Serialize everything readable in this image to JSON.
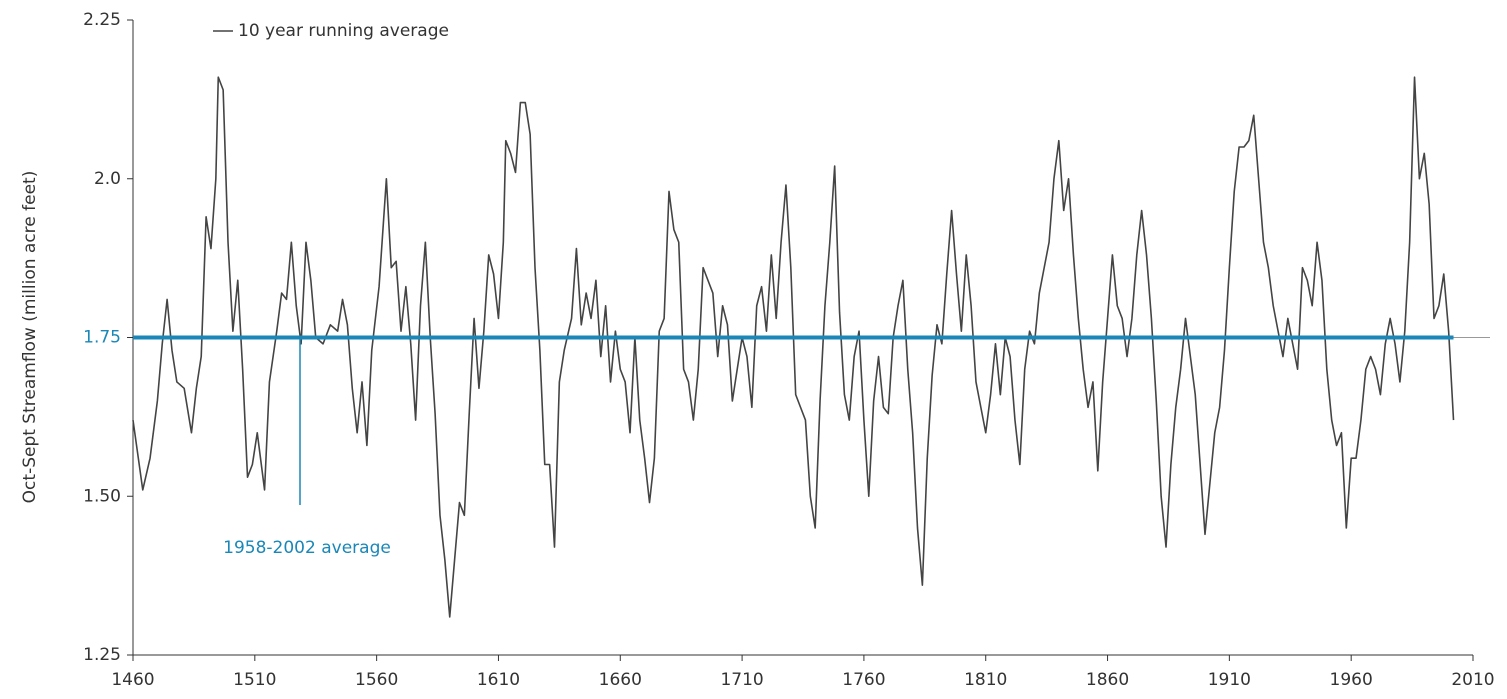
{
  "chart_data": {
    "type": "line",
    "y_label": "Oct-Sept Streamflow (million acre feet)",
    "xlim": [
      1460,
      2010
    ],
    "xticks": [
      1460,
      1510,
      1560,
      1610,
      1660,
      1710,
      1760,
      1810,
      1860,
      1910,
      1960,
      2010
    ],
    "ylim": [
      1.25,
      2.25
    ],
    "yticks": [
      1.25,
      {
        "value": 1.5,
        "label": "1.50"
      },
      1.75,
      {
        "value": 2,
        "label": "2.0"
      },
      2.25
    ],
    "reference_line": {
      "value": 1.75,
      "label": "1958-2002 average",
      "color": "#1a87b8"
    },
    "series": [
      {
        "name": "10 year running average",
        "color": "#444444",
        "x": [
          1460,
          1464,
          1467,
          1470,
          1472,
          1474,
          1476,
          1478,
          1481,
          1484,
          1486,
          1488,
          1490,
          1492,
          1494,
          1495,
          1497,
          1499,
          1501,
          1503,
          1505,
          1507,
          1509,
          1511,
          1514,
          1516,
          1519,
          1521,
          1523,
          1525,
          1527,
          1529,
          1531,
          1533,
          1535,
          1538,
          1541,
          1544,
          1546,
          1548,
          1550,
          1552,
          1554,
          1556,
          1558,
          1561,
          1564,
          1566,
          1568,
          1570,
          1572,
          1574,
          1576,
          1578,
          1580,
          1582,
          1584,
          1586,
          1588,
          1590,
          1592,
          1594,
          1596,
          1598,
          1600,
          1602,
          1604,
          1606,
          1608,
          1610,
          1612,
          1613,
          1615,
          1617,
          1619,
          1621,
          1623,
          1625,
          1627,
          1629,
          1631,
          1633,
          1635,
          1637,
          1640,
          1642,
          1644,
          1646,
          1648,
          1650,
          1652,
          1654,
          1656,
          1658,
          1660,
          1662,
          1664,
          1666,
          1668,
          1670,
          1672,
          1674,
          1676,
          1678,
          1680,
          1682,
          1684,
          1686,
          1688,
          1690,
          1692,
          1694,
          1696,
          1698,
          1700,
          1702,
          1704,
          1706,
          1708,
          1710,
          1712,
          1714,
          1716,
          1718,
          1720,
          1722,
          1724,
          1726,
          1728,
          1730,
          1732,
          1734,
          1736,
          1738,
          1740,
          1742,
          1744,
          1746,
          1748,
          1750,
          1752,
          1754,
          1756,
          1758,
          1760,
          1762,
          1764,
          1766,
          1768,
          1770,
          1772,
          1774,
          1776,
          1778,
          1780,
          1782,
          1784,
          1786,
          1788,
          1790,
          1792,
          1794,
          1796,
          1798,
          1800,
          1802,
          1804,
          1806,
          1808,
          1810,
          1812,
          1814,
          1816,
          1818,
          1820,
          1822,
          1824,
          1826,
          1828,
          1830,
          1832,
          1834,
          1836,
          1838,
          1840,
          1842,
          1844,
          1846,
          1848,
          1850,
          1852,
          1854,
          1856,
          1858,
          1860,
          1862,
          1864,
          1866,
          1868,
          1870,
          1872,
          1874,
          1876,
          1878,
          1880,
          1882,
          1884,
          1886,
          1888,
          1890,
          1892,
          1894,
          1896,
          1898,
          1900,
          1902,
          1904,
          1906,
          1908,
          1910,
          1912,
          1914,
          1916,
          1918,
          1920,
          1922,
          1924,
          1926,
          1928,
          1930,
          1932,
          1934,
          1936,
          1938,
          1940,
          1942,
          1944,
          1946,
          1948,
          1950,
          1952,
          1954,
          1956,
          1958,
          1960,
          1962,
          1964,
          1966,
          1968,
          1970,
          1972,
          1974,
          1976,
          1978,
          1980,
          1982,
          1984,
          1986,
          1988,
          1990,
          1992,
          1994,
          1996,
          1998,
          2000,
          2002
        ],
        "values": [
          1.62,
          1.51,
          1.56,
          1.65,
          1.74,
          1.81,
          1.73,
          1.68,
          1.67,
          1.6,
          1.67,
          1.72,
          1.94,
          1.89,
          2.0,
          2.16,
          2.14,
          1.9,
          1.76,
          1.84,
          1.7,
          1.53,
          1.55,
          1.6,
          1.51,
          1.68,
          1.76,
          1.82,
          1.81,
          1.9,
          1.8,
          1.74,
          1.9,
          1.84,
          1.75,
          1.74,
          1.77,
          1.76,
          1.81,
          1.77,
          1.67,
          1.6,
          1.68,
          1.58,
          1.73,
          1.83,
          2.0,
          1.86,
          1.87,
          1.76,
          1.83,
          1.74,
          1.62,
          1.8,
          1.9,
          1.75,
          1.63,
          1.47,
          1.4,
          1.31,
          1.4,
          1.49,
          1.47,
          1.63,
          1.78,
          1.67,
          1.76,
          1.88,
          1.85,
          1.78,
          1.9,
          2.06,
          2.04,
          2.01,
          2.12,
          2.12,
          2.07,
          1.86,
          1.73,
          1.55,
          1.55,
          1.42,
          1.68,
          1.73,
          1.78,
          1.89,
          1.77,
          1.82,
          1.78,
          1.84,
          1.72,
          1.8,
          1.68,
          1.76,
          1.7,
          1.68,
          1.6,
          1.75,
          1.62,
          1.56,
          1.49,
          1.56,
          1.76,
          1.78,
          1.98,
          1.92,
          1.9,
          1.7,
          1.68,
          1.62,
          1.7,
          1.86,
          1.84,
          1.82,
          1.72,
          1.8,
          1.77,
          1.65,
          1.7,
          1.75,
          1.72,
          1.64,
          1.8,
          1.83,
          1.76,
          1.88,
          1.78,
          1.9,
          1.99,
          1.86,
          1.66,
          1.64,
          1.62,
          1.5,
          1.45,
          1.65,
          1.8,
          1.9,
          2.02,
          1.79,
          1.66,
          1.62,
          1.72,
          1.76,
          1.62,
          1.5,
          1.65,
          1.72,
          1.64,
          1.63,
          1.75,
          1.8,
          1.84,
          1.7,
          1.6,
          1.45,
          1.36,
          1.56,
          1.69,
          1.77,
          1.74,
          1.85,
          1.95,
          1.85,
          1.76,
          1.88,
          1.8,
          1.68,
          1.64,
          1.6,
          1.66,
          1.74,
          1.66,
          1.75,
          1.72,
          1.62,
          1.55,
          1.7,
          1.76,
          1.74,
          1.82,
          1.86,
          1.9,
          2.0,
          2.06,
          1.95,
          2.0,
          1.88,
          1.78,
          1.7,
          1.64,
          1.68,
          1.54,
          1.68,
          1.78,
          1.88,
          1.8,
          1.78,
          1.72,
          1.78,
          1.88,
          1.95,
          1.88,
          1.78,
          1.65,
          1.5,
          1.42,
          1.55,
          1.64,
          1.7,
          1.78,
          1.72,
          1.66,
          1.55,
          1.44,
          1.52,
          1.6,
          1.64,
          1.73,
          1.86,
          1.98,
          2.05,
          2.05,
          2.06,
          2.1,
          2.0,
          1.9,
          1.86,
          1.8,
          1.76,
          1.72,
          1.78,
          1.74,
          1.7,
          1.86,
          1.84,
          1.8,
          1.9,
          1.84,
          1.7,
          1.62,
          1.58,
          1.6,
          1.45,
          1.56,
          1.56,
          1.62,
          1.7,
          1.72,
          1.7,
          1.66,
          1.74,
          1.78,
          1.74,
          1.68,
          1.76,
          1.9,
          2.16,
          2.0,
          2.04,
          1.96,
          1.78,
          1.8,
          1.85,
          1.76,
          1.62
        ]
      }
    ]
  }
}
